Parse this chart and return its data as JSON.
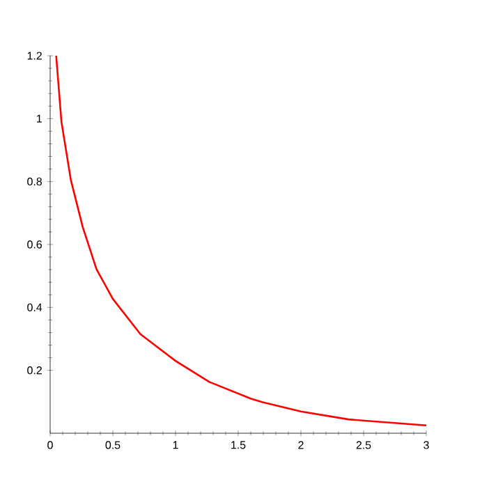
{
  "chart_data": {
    "type": "line",
    "x": [
      0.048,
      0.09,
      0.165,
      0.26,
      0.37,
      0.5,
      0.72,
      1.0,
      1.27,
      1.6,
      1.69,
      2.0,
      2.38,
      3.0
    ],
    "series": [
      {
        "color": "#ff0000",
        "values": [
          1.2,
          0.99,
          0.805,
          0.655,
          0.521,
          0.427,
          0.315,
          0.23,
          0.163,
          0.11,
          0.099,
          0.069,
          0.044,
          0.025
        ]
      }
    ],
    "xlim": [
      0,
      3
    ],
    "ylim": [
      0,
      1.2
    ],
    "xticks": [
      0,
      0.5,
      1,
      1.5,
      2,
      2.5,
      3
    ],
    "yticks": [
      0.2,
      0.4,
      0.6,
      0.8,
      1,
      1.2
    ],
    "marker": "none",
    "line_style": "solid"
  }
}
